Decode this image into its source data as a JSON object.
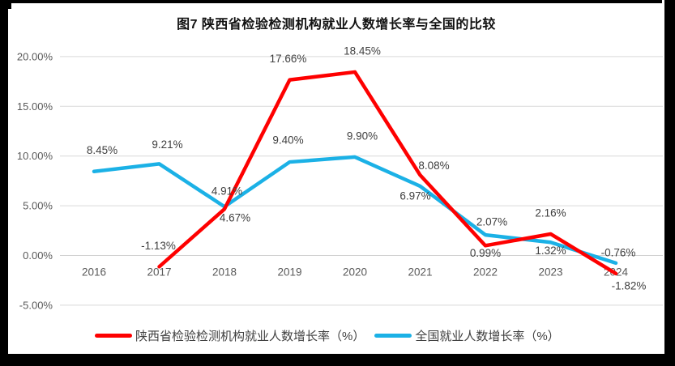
{
  "title": "图7 陕西省检验检测机构就业人数增长率与全国的比较",
  "chart_data": {
    "type": "line",
    "x": [
      "2016",
      "2017",
      "2018",
      "2019",
      "2020",
      "2021",
      "2022",
      "2023",
      "2024"
    ],
    "series": [
      {
        "name": "陕西省检验检测机构就业人数增长率（%）",
        "color": "#fe0000",
        "values": [
          null,
          -1.13,
          4.67,
          17.66,
          18.45,
          8.08,
          0.99,
          2.16,
          -1.82
        ]
      },
      {
        "name": "全国就业人数增长率（%）",
        "color": "#1bb1e6",
        "values": [
          8.45,
          9.21,
          4.91,
          9.4,
          9.9,
          6.97,
          2.07,
          1.32,
          -0.76
        ]
      }
    ],
    "y_ticks": [
      {
        "label": "20.00%",
        "value": 20
      },
      {
        "label": "15.00%",
        "value": 15
      },
      {
        "label": "10.00%",
        "value": 10
      },
      {
        "label": "5.00%",
        "value": 5
      },
      {
        "label": "0.00%",
        "value": 0
      },
      {
        "label": "-5.00%",
        "value": -5
      }
    ],
    "ylim": [
      -5,
      20
    ],
    "grid": true,
    "data_labels": "two-decimal-percent",
    "legend_position": "bottom",
    "colors": {
      "gridline": "#d9d9d9",
      "zero_line": "#d0d0d0",
      "axis_text": "#595959",
      "data_label_text": "#3f3f3f",
      "frame": "#000000",
      "background": "#ffffff"
    }
  }
}
